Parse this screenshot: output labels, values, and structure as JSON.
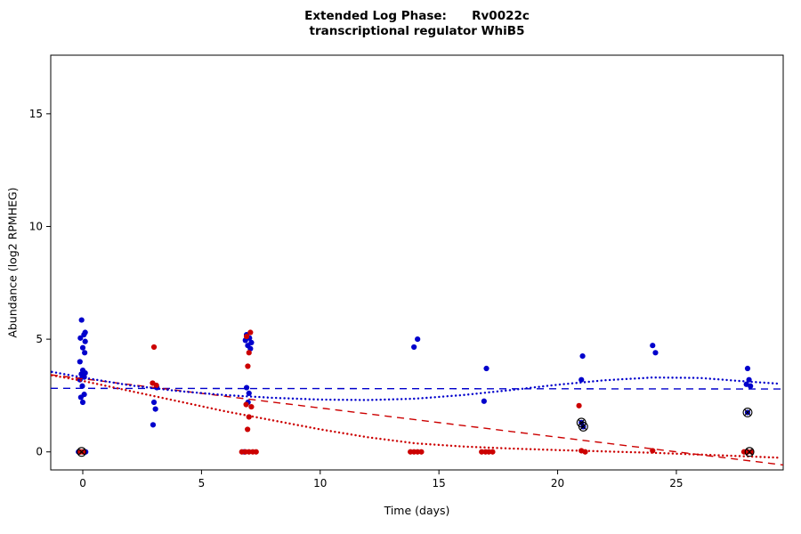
{
  "chart_data": {
    "type": "scatter",
    "title": "Extended Log Phase:      Rv0022c",
    "subtitle": "transcriptional regulator WhiB5",
    "xlabel": "Time  (days)",
    "ylabel": "Abundance  (log2 RPMHEG)",
    "x_axis": {
      "min": -1.35,
      "max": 29.5,
      "ticks": [
        0,
        5,
        10,
        15,
        20,
        25
      ]
    },
    "y_axis": {
      "min": -0.8,
      "max": 17.6,
      "ticks": [
        0,
        5,
        10,
        15
      ]
    },
    "colors": {
      "series_blue": "#0000CC",
      "series_red": "#CC0000",
      "marked": "#000000"
    },
    "legend": "none",
    "grid": false,
    "series": [
      {
        "name": "blue-condition-points",
        "type": "points",
        "color": "#0000CC",
        "points": [
          [
            -0.05,
            5.85
          ],
          [
            0.1,
            5.3
          ],
          [
            0.05,
            5.2
          ],
          [
            -0.1,
            5.05
          ],
          [
            0.1,
            4.9
          ],
          [
            0.0,
            4.62
          ],
          [
            0.08,
            4.4
          ],
          [
            -0.12,
            4.0
          ],
          [
            0.0,
            3.62
          ],
          [
            0.1,
            3.5
          ],
          [
            -0.06,
            3.45
          ],
          [
            0.06,
            3.32
          ],
          [
            -0.12,
            3.2
          ],
          [
            -0.02,
            2.92
          ],
          [
            0.06,
            2.55
          ],
          [
            -0.08,
            2.42
          ],
          [
            0.0,
            2.2
          ],
          [
            -0.18,
            0.0
          ],
          [
            0.12,
            0.0
          ],
          [
            3.12,
            2.85
          ],
          [
            3.0,
            2.2
          ],
          [
            3.06,
            1.9
          ],
          [
            2.96,
            1.2
          ],
          [
            6.9,
            5.2
          ],
          [
            7.02,
            5.05
          ],
          [
            6.85,
            4.95
          ],
          [
            7.1,
            4.85
          ],
          [
            6.95,
            4.72
          ],
          [
            7.06,
            4.58
          ],
          [
            6.9,
            2.85
          ],
          [
            7.0,
            2.6
          ],
          [
            6.96,
            2.2
          ],
          [
            6.8,
            0.0
          ],
          [
            14.1,
            5.0
          ],
          [
            13.95,
            4.65
          ],
          [
            17.0,
            3.7
          ],
          [
            16.9,
            2.25
          ],
          [
            21.05,
            4.25
          ],
          [
            21.0,
            3.2
          ],
          [
            21.0,
            1.3
          ],
          [
            21.08,
            1.12
          ],
          [
            24.0,
            4.72
          ],
          [
            24.12,
            4.4
          ],
          [
            28.0,
            3.7
          ],
          [
            28.06,
            3.2
          ],
          [
            27.95,
            3.0
          ],
          [
            28.12,
            2.92
          ],
          [
            28.0,
            1.75
          ]
        ]
      },
      {
        "name": "red-condition-points",
        "type": "points",
        "color": "#CC0000",
        "points": [
          [
            0.0,
            0.0
          ],
          [
            -0.1,
            0.0
          ],
          [
            3.0,
            4.65
          ],
          [
            2.94,
            3.05
          ],
          [
            3.1,
            2.95
          ],
          [
            7.06,
            5.3
          ],
          [
            6.9,
            5.12
          ],
          [
            7.0,
            4.4
          ],
          [
            6.95,
            3.8
          ],
          [
            6.88,
            2.1
          ],
          [
            7.1,
            2.0
          ],
          [
            7.0,
            1.55
          ],
          [
            6.94,
            1.0
          ],
          [
            6.7,
            0.0
          ],
          [
            6.85,
            0.0
          ],
          [
            7.0,
            0.0
          ],
          [
            7.16,
            0.0
          ],
          [
            7.3,
            0.0
          ],
          [
            13.8,
            0.0
          ],
          [
            13.95,
            0.0
          ],
          [
            14.1,
            0.0
          ],
          [
            14.26,
            0.0
          ],
          [
            16.8,
            0.0
          ],
          [
            16.96,
            0.0
          ],
          [
            17.1,
            0.0
          ],
          [
            17.26,
            0.0
          ],
          [
            20.9,
            2.05
          ],
          [
            21.0,
            0.05
          ],
          [
            21.16,
            0.0
          ],
          [
            24.0,
            0.05
          ],
          [
            27.85,
            0.0
          ],
          [
            28.0,
            0.0
          ],
          [
            28.16,
            0.0
          ]
        ]
      },
      {
        "name": "blue-linear-fit",
        "type": "line",
        "style": "dashed",
        "color": "#0000CC",
        "points": [
          [
            -1.35,
            2.82
          ],
          [
            29.5,
            2.79
          ]
        ]
      },
      {
        "name": "red-linear-fit",
        "type": "line",
        "style": "dashed",
        "color": "#CC0000",
        "points": [
          [
            -1.35,
            3.42
          ],
          [
            29.5,
            -0.58
          ]
        ]
      },
      {
        "name": "blue-smooth-fit",
        "type": "line",
        "style": "dotted",
        "color": "#0000CC",
        "points": [
          [
            -1.3,
            3.55
          ],
          [
            0,
            3.3
          ],
          [
            2,
            2.95
          ],
          [
            4,
            2.7
          ],
          [
            6,
            2.52
          ],
          [
            8,
            2.4
          ],
          [
            10,
            2.32
          ],
          [
            12,
            2.3
          ],
          [
            14,
            2.36
          ],
          [
            16,
            2.52
          ],
          [
            18,
            2.74
          ],
          [
            20,
            2.98
          ],
          [
            22,
            3.18
          ],
          [
            24,
            3.3
          ],
          [
            26,
            3.28
          ],
          [
            28,
            3.12
          ],
          [
            29.4,
            3.02
          ]
        ]
      },
      {
        "name": "red-smooth-fit",
        "type": "line",
        "style": "dotted",
        "color": "#CC0000",
        "points": [
          [
            -1.3,
            3.4
          ],
          [
            0,
            3.15
          ],
          [
            2,
            2.7
          ],
          [
            4,
            2.25
          ],
          [
            6,
            1.8
          ],
          [
            8,
            1.4
          ],
          [
            10,
            1.0
          ],
          [
            12,
            0.65
          ],
          [
            14,
            0.38
          ],
          [
            16,
            0.24
          ],
          [
            18,
            0.15
          ],
          [
            20,
            0.08
          ],
          [
            22,
            0.02
          ],
          [
            24,
            -0.04
          ],
          [
            26,
            -0.12
          ],
          [
            28,
            -0.2
          ],
          [
            29.4,
            -0.26
          ]
        ]
      },
      {
        "name": "marked-outlier-points",
        "type": "circled",
        "color": "#000000",
        "points": [
          [
            -0.05,
            0.0
          ],
          [
            21.0,
            1.3
          ],
          [
            21.08,
            1.12
          ],
          [
            28.0,
            1.75
          ],
          [
            28.08,
            0.0
          ]
        ]
      }
    ]
  }
}
